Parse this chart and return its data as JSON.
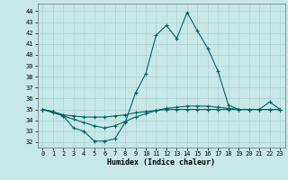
{
  "xlabel": "Humidex (Indice chaleur)",
  "background_color": "#c8e8e8",
  "grid_color": "#b0d4d4",
  "line_color": "#006060",
  "xlim": [
    -0.5,
    23.5
  ],
  "ylim": [
    31.5,
    44.7
  ],
  "yticks": [
    32,
    33,
    34,
    35,
    36,
    37,
    38,
    39,
    40,
    41,
    42,
    43,
    44
  ],
  "xticks": [
    0,
    1,
    2,
    3,
    4,
    5,
    6,
    7,
    8,
    9,
    10,
    11,
    12,
    13,
    14,
    15,
    16,
    17,
    18,
    19,
    20,
    21,
    22,
    23
  ],
  "series1_x": [
    0,
    1,
    2,
    3,
    4,
    5,
    6,
    7,
    8,
    9,
    10,
    11,
    12,
    13,
    14,
    15,
    16,
    17,
    18,
    19,
    20,
    21,
    22,
    23
  ],
  "series1_y": [
    35.0,
    34.8,
    34.5,
    34.4,
    34.3,
    34.3,
    34.3,
    34.4,
    34.5,
    34.7,
    34.8,
    34.9,
    35.0,
    35.0,
    35.0,
    35.0,
    35.0,
    35.0,
    35.0,
    35.0,
    35.0,
    35.0,
    35.0,
    35.0
  ],
  "series2_x": [
    0,
    1,
    2,
    3,
    4,
    5,
    6,
    7,
    8,
    9,
    10,
    11,
    12,
    13,
    14,
    15,
    16,
    17,
    18,
    19,
    20,
    21,
    22,
    23
  ],
  "series2_y": [
    35.0,
    34.8,
    34.4,
    33.3,
    33.0,
    32.1,
    32.1,
    32.3,
    33.8,
    36.5,
    38.3,
    41.8,
    42.7,
    41.5,
    43.9,
    42.2,
    40.6,
    38.5,
    35.4,
    35.0,
    35.0,
    35.0,
    35.7,
    35.0
  ],
  "series3_x": [
    0,
    1,
    2,
    3,
    4,
    5,
    6,
    7,
    8,
    9,
    10,
    11,
    12,
    13,
    14,
    15,
    16,
    17,
    18,
    19,
    20,
    21,
    22,
    23
  ],
  "series3_y": [
    35.0,
    34.7,
    34.4,
    34.1,
    33.8,
    33.5,
    33.3,
    33.5,
    33.9,
    34.3,
    34.6,
    34.9,
    35.1,
    35.2,
    35.3,
    35.3,
    35.3,
    35.2,
    35.1,
    35.0,
    35.0,
    35.0,
    35.0,
    35.0
  ]
}
